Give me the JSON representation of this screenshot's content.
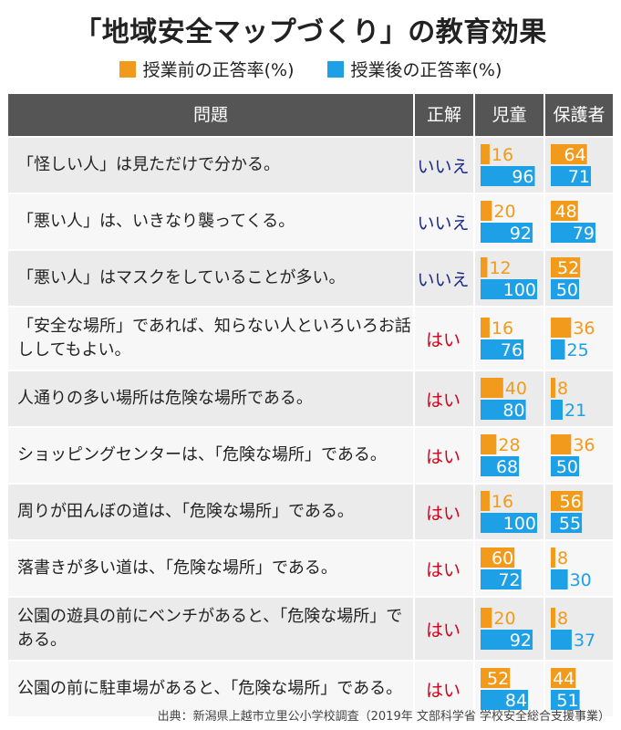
{
  "title": "「地域安全マップづくり」の教育効果",
  "legend": {
    "before": "授業前の正答率(%)",
    "after": "授業後の正答率(%)"
  },
  "colors": {
    "before": "#F29A1B",
    "after": "#1EA0E6",
    "header": "#555555",
    "row_a": "#EBEBEB",
    "row_b": "#F7F7F7"
  },
  "headers": {
    "question": "問題",
    "answer": "正解",
    "children": "児童",
    "parents": "保護者"
  },
  "source": "出典：新潟県上越市立里公小学校調査（2019年 文部科学省 学校安全総合支援事業）",
  "chart_data": {
    "type": "bar",
    "xlim": [
      0,
      100
    ],
    "series_names": [
      "授業前の正答率(%)",
      "授業後の正答率(%)"
    ],
    "rows": [
      {
        "question": "「怪しい人」は見ただけで分かる。",
        "answer": "いいえ",
        "children": [
          16,
          96
        ],
        "parents": [
          64,
          71
        ]
      },
      {
        "question": "「悪い人」は、いきなり襲ってくる。",
        "answer": "いいえ",
        "children": [
          20,
          92
        ],
        "parents": [
          48,
          79
        ]
      },
      {
        "question": "「悪い人」はマスクをしていることが多い。",
        "answer": "いいえ",
        "children": [
          12,
          100
        ],
        "parents": [
          52,
          50
        ]
      },
      {
        "question": "「安全な場所」であれば、知らない人といろいろお話ししてもよい。",
        "answer": "はい",
        "children": [
          16,
          76
        ],
        "parents": [
          36,
          25
        ]
      },
      {
        "question": "人通りの多い場所は危険な場所である。",
        "answer": "はい",
        "children": [
          40,
          80
        ],
        "parents": [
          8,
          21
        ]
      },
      {
        "question": "ショッピングセンターは、「危険な場所」である。",
        "answer": "はい",
        "children": [
          28,
          68
        ],
        "parents": [
          36,
          50
        ]
      },
      {
        "question": "周りが田んぼの道は、「危険な場所」である。",
        "answer": "はい",
        "children": [
          16,
          100
        ],
        "parents": [
          56,
          55
        ]
      },
      {
        "question": "落書きが多い道は、「危険な場所」である。",
        "answer": "はい",
        "children": [
          60,
          72
        ],
        "parents": [
          8,
          30
        ]
      },
      {
        "question": "公園の遊具の前にベンチがあると、「危険な場所」である。",
        "answer": "はい",
        "children": [
          20,
          92
        ],
        "parents": [
          8,
          37
        ]
      },
      {
        "question": "公園の前に駐車場があると、「危険な場所」である。",
        "answer": "はい",
        "children": [
          52,
          84
        ],
        "parents": [
          44,
          51
        ]
      }
    ]
  }
}
